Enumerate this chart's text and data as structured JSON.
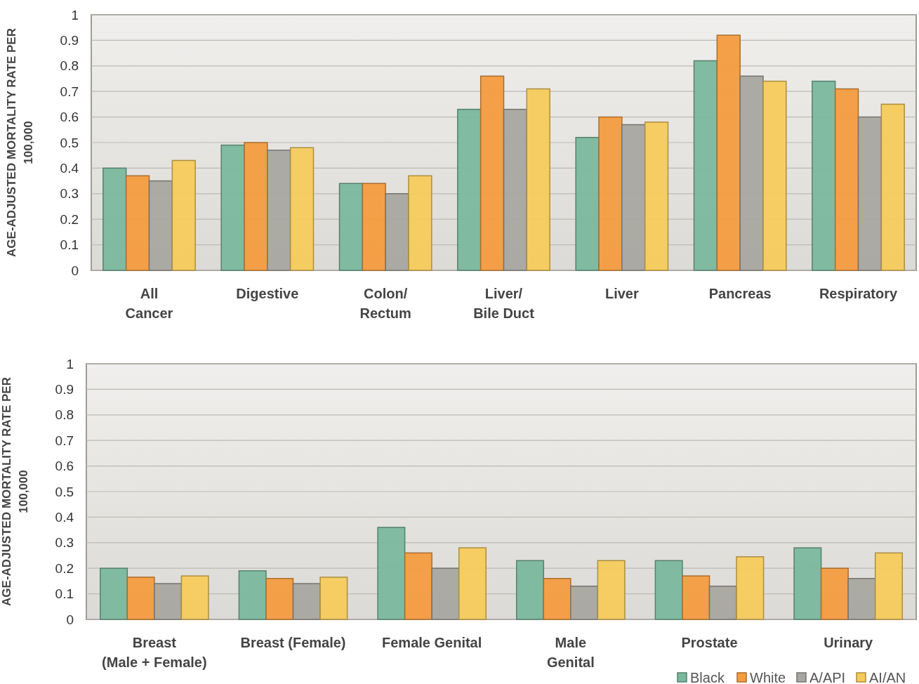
{
  "chart_data": [
    {
      "type": "bar",
      "ylabel": "AGE-ADJUSTED MORTALITY RATE PER\n100,000",
      "categories": [
        "All\nCancer",
        "Digestive",
        "Colon/\nRectum",
        "Liver/\nBile Duct",
        "Liver",
        "Pancreas",
        "Respiratory"
      ],
      "series": [
        {
          "color": "#7ab89e",
          "values": [
            0.4,
            0.49,
            0.34,
            0.63,
            0.52,
            0.82,
            0.74
          ]
        },
        {
          "color": "#f49c40",
          "values": [
            0.37,
            0.5,
            0.34,
            0.76,
            0.6,
            0.92,
            0.71
          ]
        },
        {
          "color": "#a8a6a0",
          "values": [
            0.35,
            0.47,
            0.3,
            0.63,
            0.57,
            0.76,
            0.6
          ]
        },
        {
          "color": "#f5cb5c",
          "values": [
            0.43,
            0.48,
            0.37,
            0.71,
            0.58,
            0.74,
            0.65
          ]
        }
      ],
      "ylim": [
        0,
        1
      ],
      "yticks": [
        0,
        0.1,
        0.2,
        0.3,
        0.4,
        0.5,
        0.6,
        0.7,
        0.8,
        0.9,
        1
      ],
      "grid": "y",
      "legend": false
    },
    {
      "type": "bar",
      "ylabel": "AGE-ADJUSTED MORTALITY RATE PER\n100,000",
      "categories": [
        "Breast\n(Male + Female)",
        "Breast (Female)",
        "Female Genital",
        "Male\nGenital",
        "Prostate",
        "Urinary"
      ],
      "series": [
        {
          "name": "Black",
          "color": "#7ab89e",
          "values": [
            0.2,
            0.19,
            0.36,
            0.23,
            0.23,
            0.28
          ]
        },
        {
          "name": "White",
          "color": "#f49c40",
          "values": [
            0.165,
            0.16,
            0.26,
            0.16,
            0.17,
            0.2
          ]
        },
        {
          "name": "A/API",
          "color": "#a8a6a0",
          "values": [
            0.14,
            0.14,
            0.2,
            0.13,
            0.13,
            0.16
          ]
        },
        {
          "name": "AI/AN",
          "color": "#f5cb5c",
          "values": [
            0.17,
            0.165,
            0.28,
            0.23,
            0.245,
            0.26
          ]
        }
      ],
      "ylim": [
        0,
        1
      ],
      "yticks": [
        0,
        0.1,
        0.2,
        0.3,
        0.4,
        0.5,
        0.6,
        0.7,
        0.8,
        0.9,
        1
      ],
      "grid": "y",
      "legend": "bottom right"
    }
  ]
}
